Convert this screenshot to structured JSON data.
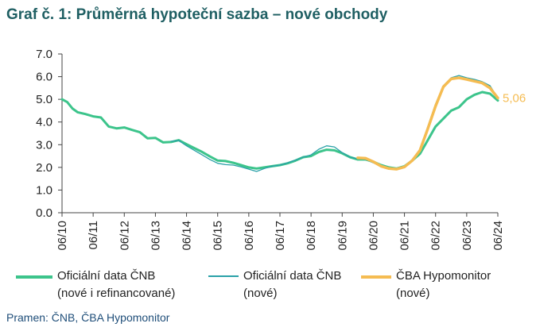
{
  "title": "Graf č. 1: Průměrná hypoteční sazba – nové obchody",
  "source": "Pramen: ČNB, ČBA Hypomonitor",
  "end_label": "5,06",
  "colors": {
    "title": "#1f5f63",
    "series1": "#3cc48b",
    "series2": "#2aa1a8",
    "series3": "#f5bc52",
    "axis": "#444444",
    "source": "#1f4e79"
  },
  "legend": [
    {
      "line1": "Oficiální data ČNB",
      "line2": "(nové i refinancované)"
    },
    {
      "line1": "Oficiální data ČNB",
      "line2": "(nové)"
    },
    {
      "line1": "ČBA Hypomonitor",
      "line2": "(nové)"
    }
  ],
  "chart_data": {
    "type": "line",
    "title": "Graf č. 1: Průměrná hypoteční sazba – nové obchody",
    "ylim": [
      0,
      7
    ],
    "yticks": [
      "0.0",
      "1.0",
      "2.0",
      "3.0",
      "4.0",
      "5.0",
      "6.0",
      "7.0"
    ],
    "xlim": [
      "2010-06",
      "2024-06"
    ],
    "xticks": [
      "06/10",
      "06/11",
      "06/12",
      "06/13",
      "06/14",
      "06/15",
      "06/16",
      "06/17",
      "06/18",
      "06/19",
      "06/20",
      "06/21",
      "06/22",
      "06/23",
      "06/24"
    ],
    "grid": false,
    "legend_position": "bottom",
    "series": [
      {
        "name": "Oficiální data ČNB (nové i refinancované)",
        "color": "#3cc48b",
        "points": [
          [
            "2010-06",
            5.0
          ],
          [
            "2010-08",
            4.88
          ],
          [
            "2010-10",
            4.6
          ],
          [
            "2010-12",
            4.43
          ],
          [
            "2011-03",
            4.35
          ],
          [
            "2011-06",
            4.25
          ],
          [
            "2011-09",
            4.2
          ],
          [
            "2011-12",
            3.8
          ],
          [
            "2012-03",
            3.72
          ],
          [
            "2012-06",
            3.76
          ],
          [
            "2012-09",
            3.65
          ],
          [
            "2012-12",
            3.55
          ],
          [
            "2013-03",
            3.28
          ],
          [
            "2013-06",
            3.3
          ],
          [
            "2013-09",
            3.1
          ],
          [
            "2013-12",
            3.12
          ],
          [
            "2014-03",
            3.2
          ],
          [
            "2014-06",
            3.02
          ],
          [
            "2014-09",
            2.85
          ],
          [
            "2014-12",
            2.68
          ],
          [
            "2015-03",
            2.48
          ],
          [
            "2015-06",
            2.3
          ],
          [
            "2015-09",
            2.28
          ],
          [
            "2015-12",
            2.2
          ],
          [
            "2016-03",
            2.1
          ],
          [
            "2016-06",
            2.0
          ],
          [
            "2016-09",
            1.95
          ],
          [
            "2016-12",
            2.0
          ],
          [
            "2017-03",
            2.05
          ],
          [
            "2017-06",
            2.1
          ],
          [
            "2017-09",
            2.18
          ],
          [
            "2017-12",
            2.3
          ],
          [
            "2018-03",
            2.45
          ],
          [
            "2018-06",
            2.5
          ],
          [
            "2018-09",
            2.68
          ],
          [
            "2018-12",
            2.78
          ],
          [
            "2019-03",
            2.75
          ],
          [
            "2019-06",
            2.62
          ],
          [
            "2019-09",
            2.45
          ],
          [
            "2019-12",
            2.35
          ],
          [
            "2020-03",
            2.35
          ],
          [
            "2020-06",
            2.25
          ],
          [
            "2020-09",
            2.1
          ],
          [
            "2020-12",
            2.0
          ],
          [
            "2021-03",
            1.95
          ],
          [
            "2021-06",
            2.05
          ],
          [
            "2021-09",
            2.3
          ],
          [
            "2021-12",
            2.6
          ],
          [
            "2022-03",
            3.2
          ],
          [
            "2022-06",
            3.8
          ],
          [
            "2022-09",
            4.15
          ],
          [
            "2022-12",
            4.5
          ],
          [
            "2023-03",
            4.65
          ],
          [
            "2023-06",
            5.0
          ],
          [
            "2023-09",
            5.2
          ],
          [
            "2023-12",
            5.32
          ],
          [
            "2024-03",
            5.25
          ],
          [
            "2024-06",
            4.95
          ]
        ]
      },
      {
        "name": "Oficiální data ČNB (nové)",
        "color": "#2aa1a8",
        "points": [
          [
            "2013-12",
            3.15
          ],
          [
            "2014-03",
            3.18
          ],
          [
            "2014-06",
            2.95
          ],
          [
            "2014-09",
            2.75
          ],
          [
            "2014-12",
            2.55
          ],
          [
            "2015-03",
            2.35
          ],
          [
            "2015-06",
            2.18
          ],
          [
            "2015-09",
            2.12
          ],
          [
            "2015-12",
            2.1
          ],
          [
            "2016-03",
            2.02
          ],
          [
            "2016-06",
            1.92
          ],
          [
            "2016-09",
            1.82
          ],
          [
            "2016-12",
            1.95
          ],
          [
            "2017-03",
            2.05
          ],
          [
            "2017-06",
            2.1
          ],
          [
            "2017-09",
            2.2
          ],
          [
            "2017-12",
            2.32
          ],
          [
            "2018-03",
            2.45
          ],
          [
            "2018-06",
            2.55
          ],
          [
            "2018-09",
            2.8
          ],
          [
            "2018-12",
            2.95
          ],
          [
            "2019-03",
            2.9
          ],
          [
            "2019-06",
            2.65
          ],
          [
            "2019-09",
            2.45
          ],
          [
            "2019-12",
            2.38
          ],
          [
            "2020-03",
            2.35
          ],
          [
            "2020-06",
            2.2
          ],
          [
            "2020-09",
            2.05
          ],
          [
            "2020-12",
            1.98
          ],
          [
            "2021-03",
            1.95
          ],
          [
            "2021-06",
            2.05
          ],
          [
            "2021-09",
            2.35
          ],
          [
            "2021-12",
            2.8
          ],
          [
            "2022-03",
            3.8
          ],
          [
            "2022-06",
            4.8
          ],
          [
            "2022-09",
            5.6
          ],
          [
            "2022-12",
            5.95
          ],
          [
            "2023-03",
            6.05
          ],
          [
            "2023-06",
            5.95
          ],
          [
            "2023-09",
            5.88
          ],
          [
            "2023-12",
            5.78
          ],
          [
            "2024-03",
            5.6
          ],
          [
            "2024-06",
            5.05
          ]
        ]
      },
      {
        "name": "ČBA Hypomonitor (nové)",
        "color": "#f5bc52",
        "points": [
          [
            "2019-12",
            2.42
          ],
          [
            "2020-03",
            2.4
          ],
          [
            "2020-06",
            2.25
          ],
          [
            "2020-09",
            2.05
          ],
          [
            "2020-12",
            1.95
          ],
          [
            "2021-03",
            1.92
          ],
          [
            "2021-06",
            2.02
          ],
          [
            "2021-09",
            2.3
          ],
          [
            "2021-12",
            2.75
          ],
          [
            "2022-03",
            3.7
          ],
          [
            "2022-06",
            4.7
          ],
          [
            "2022-09",
            5.55
          ],
          [
            "2022-12",
            5.9
          ],
          [
            "2023-03",
            5.95
          ],
          [
            "2023-06",
            5.88
          ],
          [
            "2023-09",
            5.8
          ],
          [
            "2023-12",
            5.72
          ],
          [
            "2024-03",
            5.5
          ],
          [
            "2024-06",
            5.06
          ]
        ]
      }
    ]
  }
}
